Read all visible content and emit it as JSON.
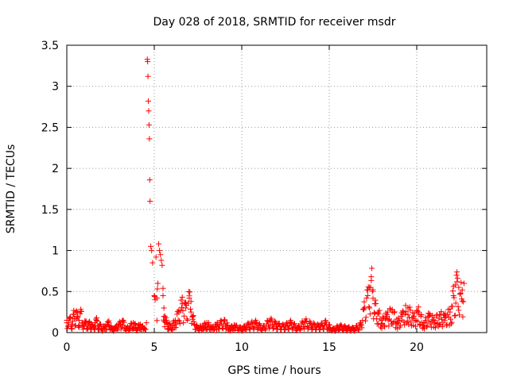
{
  "chart_data": {
    "type": "scatter",
    "title": "Day 028 of 2018, SRMTID for receiver msdr",
    "xlabel": "GPS time / hours",
    "ylabel": "SRMTID / TECUs",
    "xlim": [
      0,
      24
    ],
    "ylim": [
      0,
      3.5
    ],
    "xticks": [
      0,
      5,
      10,
      15,
      20
    ],
    "yticks": [
      0,
      0.5,
      1,
      1.5,
      2,
      2.5,
      3,
      3.5
    ],
    "xtick_labels": [
      "0",
      "5",
      "10",
      "15",
      "20"
    ],
    "ytick_labels": [
      "0",
      "0.5",
      "1",
      "1.5",
      "2",
      "2.5",
      "3",
      "3.5"
    ],
    "grid": true,
    "marker": "+",
    "color": "#ff0000",
    "series": [
      {
        "name": "SRMTID",
        "x": [
          0.0,
          0.1,
          0.2,
          0.3,
          0.4,
          0.5,
          0.6,
          0.7,
          0.8,
          0.9,
          1.0,
          1.1,
          1.2,
          1.3,
          1.4,
          1.5,
          1.6,
          1.7,
          1.8,
          1.9,
          2.0,
          2.2,
          2.4,
          2.6,
          2.8,
          3.0,
          3.2,
          3.4,
          3.6,
          3.8,
          4.0,
          4.2,
          4.4,
          4.55,
          4.6,
          4.62,
          4.64,
          4.66,
          4.68,
          4.7,
          4.72,
          4.74,
          4.76,
          4.8,
          4.85,
          4.9,
          5.0,
          5.05,
          5.1,
          5.15,
          5.2,
          5.25,
          5.3,
          5.35,
          5.4,
          5.45,
          5.5,
          5.55,
          5.6,
          5.7,
          5.8,
          6.0,
          6.2,
          6.4,
          6.6,
          6.8,
          7.0,
          7.1,
          7.2,
          7.3,
          7.5,
          7.8,
          8.0,
          8.3,
          8.6,
          9.0,
          9.3,
          9.6,
          10.0,
          10.4,
          10.8,
          11.2,
          11.6,
          12.0,
          12.4,
          12.8,
          13.2,
          13.6,
          14.0,
          14.4,
          14.8,
          15.2,
          15.6,
          16.0,
          16.4,
          16.8,
          17.0,
          17.2,
          17.3,
          17.4,
          17.5,
          17.6,
          17.8,
          18.0,
          18.3,
          18.6,
          18.9,
          19.2,
          19.5,
          19.8,
          20.1,
          20.4,
          20.7,
          21.0,
          21.3,
          21.6,
          21.9,
          22.0,
          22.1,
          22.2,
          22.3,
          22.4,
          22.5,
          22.6,
          22.7
        ],
        "y": [
          0.15,
          0.12,
          0.18,
          0.1,
          0.22,
          0.25,
          0.2,
          0.15,
          0.26,
          0.12,
          0.1,
          0.14,
          0.08,
          0.12,
          0.1,
          0.06,
          0.12,
          0.15,
          0.08,
          0.1,
          0.05,
          0.08,
          0.12,
          0.04,
          0.06,
          0.1,
          0.14,
          0.05,
          0.08,
          0.12,
          0.06,
          0.1,
          0.05,
          0.12,
          3.33,
          3.3,
          3.12,
          2.82,
          2.7,
          2.53,
          2.36,
          1.86,
          1.6,
          1.05,
          1.0,
          0.85,
          0.45,
          0.4,
          0.92,
          0.42,
          0.6,
          1.08,
          1.0,
          0.95,
          0.88,
          0.82,
          0.45,
          0.3,
          0.2,
          0.12,
          0.1,
          0.08,
          0.15,
          0.25,
          0.35,
          0.3,
          0.42,
          0.38,
          0.2,
          0.1,
          0.06,
          0.08,
          0.12,
          0.05,
          0.1,
          0.14,
          0.06,
          0.08,
          0.05,
          0.1,
          0.12,
          0.06,
          0.15,
          0.1,
          0.08,
          0.12,
          0.06,
          0.14,
          0.1,
          0.08,
          0.12,
          0.04,
          0.08,
          0.06,
          0.05,
          0.1,
          0.3,
          0.45,
          0.55,
          0.68,
          0.52,
          0.35,
          0.25,
          0.15,
          0.2,
          0.28,
          0.12,
          0.22,
          0.3,
          0.18,
          0.25,
          0.12,
          0.2,
          0.15,
          0.22,
          0.18,
          0.25,
          0.32,
          0.45,
          0.58,
          0.62,
          0.55,
          0.48,
          0.52,
          0.6
        ],
        "y_jitter_note": "dense bands near baseline"
      }
    ]
  }
}
